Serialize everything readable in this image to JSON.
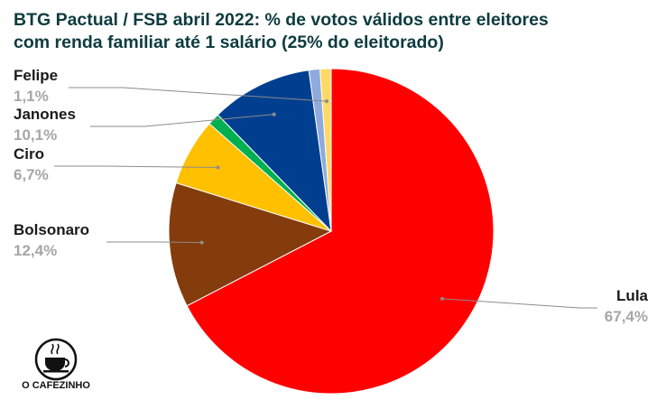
{
  "title_lines": [
    "BTG Pactual / FSB abril 2022: % de votos válidos entre eleitores",
    "com renda familiar até 1 salário (25% do eleitorado)"
  ],
  "chart_data": {
    "type": "pie",
    "title": "BTG Pactual / FSB abril 2022: % de votos válidos entre eleitores com renda familiar até 1 salário (25% do eleitorado)",
    "slices": [
      {
        "name": "Lula",
        "label": "67,4%",
        "value": 67.4,
        "color": "#ff0000"
      },
      {
        "name": "Bolsonaro",
        "label": "12,4%",
        "value": 12.4,
        "color": "#843c0c"
      },
      {
        "name": "Ciro",
        "label": "6,7%",
        "value": 6.7,
        "color": "#ffc000"
      },
      {
        "name": "",
        "label": "",
        "value": 1.2,
        "color": "#00b050"
      },
      {
        "name": "Janones",
        "label": "10,1%",
        "value": 10.1,
        "color": "#003f8f"
      },
      {
        "name": "",
        "label": "",
        "value": 1.1,
        "color": "#8faadc"
      },
      {
        "name": "Felipe",
        "label": "1,1%",
        "value": 1.1,
        "color": "#ffd966"
      }
    ]
  },
  "logo": {
    "text": "O CAFEZINHO"
  }
}
